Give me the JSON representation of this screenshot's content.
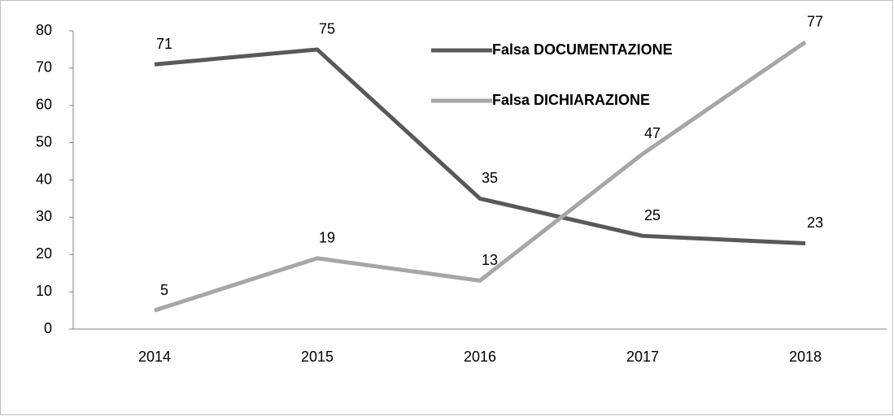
{
  "chart_data": {
    "type": "line",
    "categories": [
      "2014",
      "2015",
      "2016",
      "2017",
      "2018"
    ],
    "series": [
      {
        "name": "Falsa DOCUMENTAZIONE",
        "color": "#595959",
        "values": [
          71,
          75,
          35,
          25,
          23
        ]
      },
      {
        "name": "Falsa DICHIARAZIONE",
        "color": "#a6a6a6",
        "values": [
          5,
          19,
          13,
          47,
          77
        ]
      }
    ],
    "ylim": [
      0,
      80
    ],
    "yticks": [
      0,
      10,
      20,
      30,
      40,
      50,
      60,
      70,
      80
    ],
    "grid": false,
    "legend": "top-right"
  }
}
